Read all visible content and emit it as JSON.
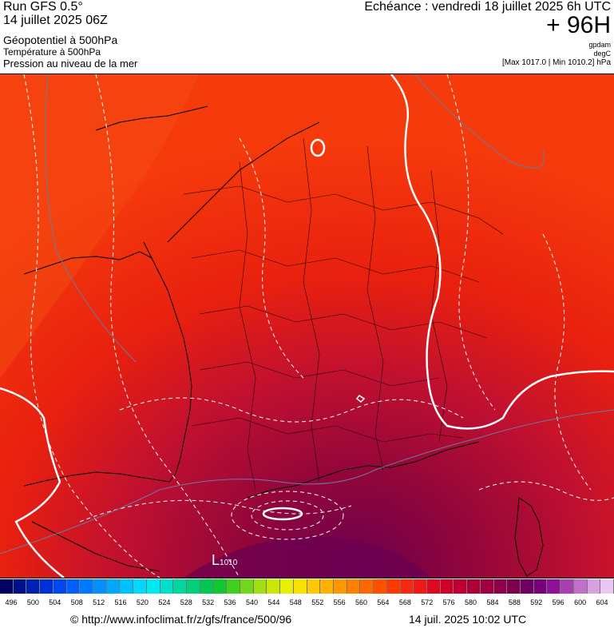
{
  "header": {
    "run_title": "Run GFS 0.5°",
    "run_date": "14 juillet 2025 06Z",
    "param_1": "Géopotentiel à 500hPa",
    "param_2": "Température à 500hPa",
    "param_3": "Pression au niveau de la mer",
    "echeance": "Echéance : vendredi 18 juillet 2025 6h UTC",
    "hours": "+ 96H",
    "unit_1": "gpdam",
    "unit_2": "degC",
    "minmax": "[Max 1017.0 | Min 1010.2] hPa"
  },
  "map": {
    "low_label": "L",
    "low_value": "1010",
    "colors": {
      "field_outer": "#f53a0c",
      "field_mid": "#e8200f",
      "field_inner": "#c01030",
      "field_core": "#92063a",
      "field_deep": "#6b0050",
      "land_border": "#000000",
      "isotherm": "#ffffff",
      "isobar": "#6a7aa0"
    }
  },
  "colorbar": {
    "colors": [
      "#000060",
      "#00108a",
      "#0020b0",
      "#0030d8",
      "#0048f0",
      "#0060ff",
      "#0078ff",
      "#0090ff",
      "#00a8ff",
      "#00c0ff",
      "#00d8ff",
      "#00e8f0",
      "#00e0c8",
      "#00d8a0",
      "#00d078",
      "#00c850",
      "#10c830",
      "#40d020",
      "#70d818",
      "#a0e010",
      "#c8e808",
      "#e8f000",
      "#f8e000",
      "#ffc800",
      "#ffb000",
      "#ff9800",
      "#ff8000",
      "#ff6800",
      "#ff5000",
      "#ff3800",
      "#f82810",
      "#f01818",
      "#e00820",
      "#d00028",
      "#c00030",
      "#b00038",
      "#a00040",
      "#900048",
      "#800050",
      "#700060",
      "#780078",
      "#901098",
      "#a840b0",
      "#c070c8",
      "#d8a0e0",
      "#e8c8f0"
    ],
    "labels": [
      "496",
      "500",
      "504",
      "508",
      "512",
      "516",
      "520",
      "524",
      "528",
      "532",
      "536",
      "540",
      "544",
      "548",
      "552",
      "556",
      "560",
      "564",
      "568",
      "572",
      "576",
      "580",
      "584",
      "588",
      "592",
      "596",
      "600",
      "604"
    ]
  },
  "footer": {
    "left": "© http://www.infoclimat.fr/z/gfs/france/500/96",
    "right": "14 juil. 2025 10:02 UTC"
  }
}
